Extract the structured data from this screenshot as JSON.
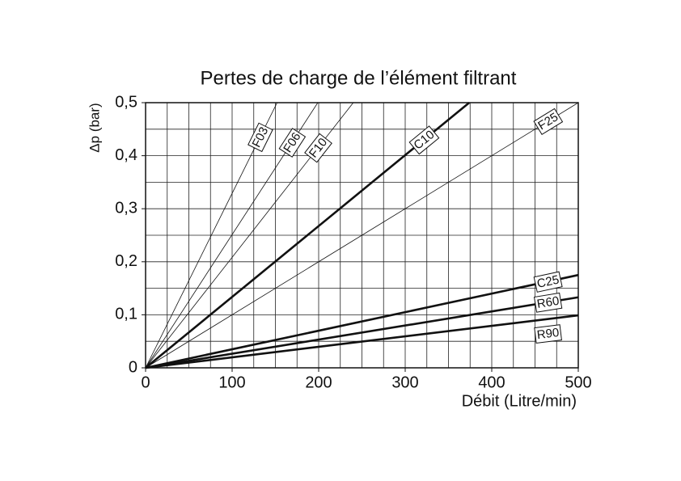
{
  "chart_data": {
    "type": "line",
    "title": "Pertes de charge de l’élément filtrant",
    "x_label": "Débit (Litre/min)",
    "y_label": "Δp (bar)",
    "xlim": [
      0,
      500
    ],
    "ylim": [
      0,
      0.5
    ],
    "xticks": [
      0,
      100,
      200,
      300,
      400,
      500
    ],
    "yticks": [
      0,
      {
        "value": 0.1,
        "label": "0,1"
      },
      {
        "value": 0.2,
        "label": "0,2"
      },
      {
        "value": 0.3,
        "label": "0,3"
      },
      {
        "value": 0.4,
        "label": "0,4"
      },
      {
        "value": 0.5,
        "label": "0,5"
      }
    ],
    "x_grid": [
      25,
      50,
      75,
      100,
      125,
      150,
      175,
      200,
      225,
      250,
      275,
      300,
      325,
      350,
      375,
      400,
      425,
      450,
      475
    ],
    "y_grid": [
      0.05,
      0.1,
      0.15,
      0.2,
      0.25,
      0.3,
      0.35,
      0.4,
      0.45
    ],
    "grid": true,
    "series": [
      {
        "name": "F03",
        "color": "#111111",
        "linewidth": 0.8,
        "x": [
          0,
          152
        ],
        "values": [
          0,
          0.5
        ]
      },
      {
        "name": "F06",
        "color": "#111111",
        "linewidth": 0.8,
        "x": [
          0,
          199
        ],
        "values": [
          0,
          0.5
        ]
      },
      {
        "name": "F10",
        "color": "#111111",
        "linewidth": 0.8,
        "x": [
          0,
          240
        ],
        "values": [
          0,
          0.5
        ]
      },
      {
        "name": "C10",
        "color": "#111111",
        "linewidth": 2.6,
        "x": [
          0,
          374
        ],
        "values": [
          0,
          0.5
        ]
      },
      {
        "name": "F25",
        "color": "#111111",
        "linewidth": 0.8,
        "x": [
          0,
          500
        ],
        "values": [
          0,
          0.5
        ]
      },
      {
        "name": "C25",
        "color": "#111111",
        "linewidth": 2.6,
        "x": [
          0,
          500
        ],
        "values": [
          0,
          0.175
        ]
      },
      {
        "name": "R60",
        "color": "#111111",
        "linewidth": 2.6,
        "x": [
          0,
          500
        ],
        "values": [
          0,
          0.133
        ]
      },
      {
        "name": "R90",
        "color": "#111111",
        "linewidth": 2.6,
        "x": [
          0,
          500
        ],
        "values": [
          0,
          0.099
        ]
      }
    ]
  }
}
